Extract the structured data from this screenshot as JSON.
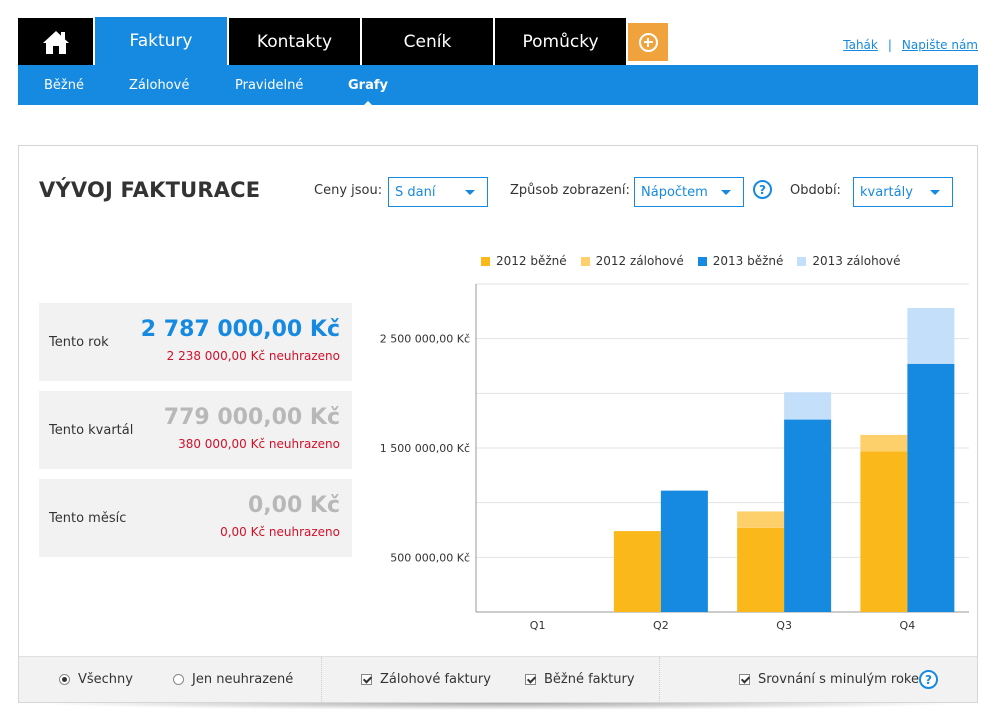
{
  "nav": {
    "tabs": [
      {
        "label": "Faktury"
      },
      {
        "label": "Kontakty"
      },
      {
        "label": "Ceník"
      },
      {
        "label": "Pomůcky"
      }
    ],
    "home_icon": "home-icon",
    "plus_icon": "plus-circle-icon"
  },
  "toplinks": {
    "tahak": "Tahák",
    "separator": "|",
    "napiste": "Napište nám"
  },
  "subnav": [
    "Běžné",
    "Zálohové",
    "Pravidelné",
    "Grafy"
  ],
  "page": {
    "title": "VÝVOJ FAKTURACE"
  },
  "controls": {
    "prices_label": "Ceny jsou:",
    "prices_value": "S daní",
    "display_label": "Způsob zobrazení:",
    "display_value": "Nápočtem",
    "help": "?",
    "period_label": "Období:",
    "period_value": "kvartály"
  },
  "stats": [
    {
      "label": "Tento rok",
      "value": "2 787 000,00 Kč",
      "unpaid": "2 238 000,00 Kč neuhrazeno"
    },
    {
      "label": "Tento kvartál",
      "value": "779 000,00 Kč",
      "unpaid": "380 000,00 Kč neuhrazeno"
    },
    {
      "label": "Tento měsíc",
      "value": "0,00 Kč",
      "unpaid": "0,00 Kč neuhrazeno"
    }
  ],
  "chart_data": {
    "type": "bar",
    "stacked_groups": true,
    "categories": [
      "Q1",
      "Q2",
      "Q3",
      "Q4"
    ],
    "series": [
      {
        "name": "2012 běžné",
        "color": "#fbb81b",
        "values": [
          0,
          740000,
          770000,
          1470000
        ]
      },
      {
        "name": "2012 zálohové",
        "color": "#fdd06c",
        "values": [
          0,
          0,
          150000,
          150000
        ]
      },
      {
        "name": "2013 běžné",
        "color": "#1689e0",
        "values": [
          0,
          1110000,
          1760000,
          2270000
        ]
      },
      {
        "name": "2013 zálohové",
        "color": "#c4dffa",
        "values": [
          0,
          0,
          250000,
          510000
        ]
      }
    ],
    "yticks": [
      "500 000,00 Kč",
      "1 500 000,00 Kč",
      "2 500 000,00 Kč"
    ],
    "ytick_values": [
      500000,
      1500000,
      2500000
    ],
    "ylim": [
      0,
      3000000
    ]
  },
  "filters": {
    "all": "Všechny",
    "unpaid": "Jen neuhrazené",
    "advance": "Zálohové faktury",
    "regular": "Běžné faktury",
    "compare": "Srovnání s minulým rokem",
    "help": "?"
  }
}
